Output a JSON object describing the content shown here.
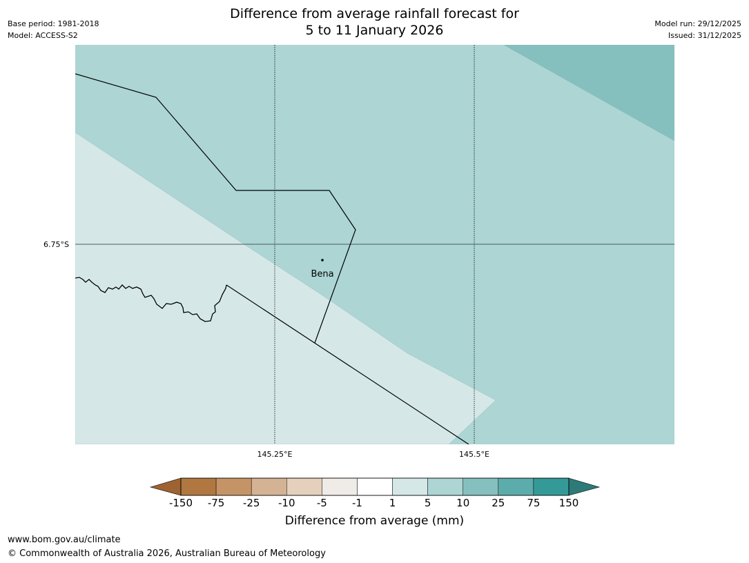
{
  "title": {
    "line1": "Difference from average rainfall forecast for",
    "line2": "5 to 11 January 2026"
  },
  "meta": {
    "base_period": "Base period: 1981-2018",
    "model": "Model: ACCESS-S2",
    "model_run": "Model run: 29/12/2025",
    "issued": "Issued: 31/12/2025"
  },
  "map": {
    "lat_label": "6.75°S",
    "lon_labels": [
      "145.25°E",
      "145.5°E"
    ],
    "place": "Bena"
  },
  "colorbar": {
    "title": "Difference from average (mm)",
    "ticks": [
      "-150",
      "-75",
      "-25",
      "-10",
      "-5",
      "-1",
      "1",
      "5",
      "10",
      "25",
      "75",
      "150"
    ],
    "colors": [
      "#9e6332",
      "#b07840",
      "#c49466",
      "#d4b294",
      "#e5d0bd",
      "#efebe7",
      "#ffffff",
      "#d5e8e7",
      "#acd5d4",
      "#85c0bf",
      "#5dacac",
      "#349a98",
      "#2d7a78"
    ]
  },
  "footer": {
    "url": "www.bom.gov.au/climate",
    "copyright": "© Commonwealth of Australia 2026, Australian Bureau of Meteorology"
  }
}
